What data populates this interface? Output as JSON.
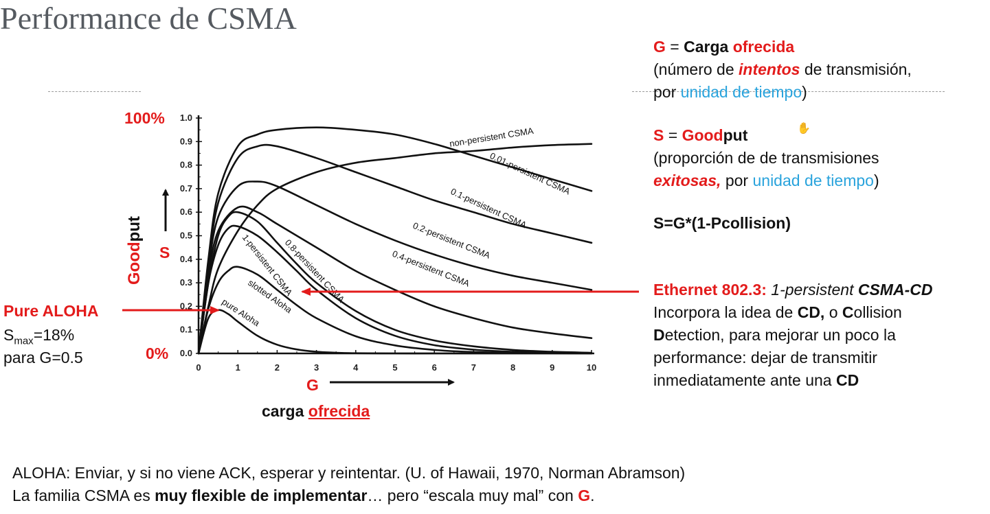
{
  "slide": {
    "title": "Performance de CSMA"
  },
  "right_text": {
    "g_def": {
      "symbol": "G",
      "eq": " = ",
      "word1": "Carga ",
      "word2": "ofrecida",
      "line2_a": "(número de ",
      "line2_b": "intentos",
      "line2_c": " de transmisión,",
      "line3_a": "por ",
      "line3_b": "unidad de tiempo",
      "line3_c": ")"
    },
    "s_def": {
      "symbol": "S",
      "eq": " = ",
      "word1": "Good",
      "word2": "put",
      "line2": "(proporción de de transmisiones",
      "line3_a": "exitosas,",
      "line3_b": " por ",
      "line3_c": "unidad de tiempo",
      "line3_d": ")"
    },
    "formula": "S=G*(1-Pcollision)",
    "ethernet": {
      "head_a": "Ethernet 802.3:",
      "head_b": " 1-persistent ",
      "head_c": "CSMA-CD",
      "l2_a": "Incorpora la idea de ",
      "l2_b": "CD,",
      "l2_c": " o ",
      "l2_d": "C",
      "l2_e": "ollision",
      "l3_a": "D",
      "l3_b": "etection, para mejorar un poco la",
      "l4": "performance: dejar de transmitir",
      "l5_a": "inmediatamente ante una ",
      "l5_b": "CD"
    }
  },
  "left_text": {
    "pure_aloha": "Pure ALOHA",
    "smax_s": "S",
    "smax_sub": "max",
    "smax_val": "=18%",
    "para": "para G=0.5",
    "pct100": "100%",
    "pct0": "0%",
    "goodput_a": "Good",
    "goodput_b": "put",
    "s_symbol": "S",
    "g_symbol": "G",
    "carga": "carga ",
    "ofrecida": "ofrecida"
  },
  "footer": {
    "line1": "ALOHA: Enviar, y si no viene ACK, esperar y reintentar. (U. of Hawaii, 1970, Norman Abramson)",
    "line2_a": "La familia CSMA es ",
    "line2_b": "muy flexible de implementar",
    "line2_c": "… pero “escala muy mal” con ",
    "line2_d": "G",
    "line2_e": "."
  },
  "colors": {
    "accent_red": "#e31b1b",
    "accent_blue": "#29a3dc",
    "title_gray": "#555a60"
  },
  "chart_data": {
    "type": "line",
    "xlim": [
      0,
      10
    ],
    "ylim": [
      0,
      1.0
    ],
    "x_ticks": [
      "0",
      "1",
      "2",
      "3",
      "4",
      "5",
      "6",
      "7",
      "8",
      "9",
      "10"
    ],
    "y_ticks": [
      "0.0",
      "0.1",
      "0.2",
      "0.3",
      "0.4",
      "0.5",
      "0.6",
      "0.7",
      "0.8",
      "0.9",
      "1.0"
    ],
    "series": [
      {
        "name": "pure Aloha",
        "x": [
          0,
          0.25,
          0.5,
          0.75,
          1,
          1.5,
          2,
          2.5,
          3,
          3.5,
          4,
          5,
          6,
          7,
          8,
          9,
          10
        ],
        "y": [
          0,
          0.15,
          0.184,
          0.168,
          0.135,
          0.075,
          0.037,
          0.017,
          0.007,
          0.003,
          0.001,
          0,
          0,
          0,
          0,
          0,
          0
        ]
      },
      {
        "name": "slotted Aloha",
        "x": [
          0,
          0.25,
          0.5,
          0.75,
          1,
          1.5,
          2,
          2.5,
          3,
          4,
          5,
          6,
          7,
          8,
          9,
          10
        ],
        "y": [
          0,
          0.19,
          0.3,
          0.35,
          0.368,
          0.335,
          0.27,
          0.205,
          0.15,
          0.073,
          0.034,
          0.015,
          0.006,
          0.003,
          0.001,
          0
        ]
      },
      {
        "name": "1-persistent CSMA",
        "x": [
          0,
          0.25,
          0.5,
          0.75,
          1,
          1.5,
          2,
          2.5,
          3,
          4,
          5,
          6,
          7,
          8,
          9,
          10
        ],
        "y": [
          0,
          0.3,
          0.46,
          0.53,
          0.54,
          0.5,
          0.43,
          0.35,
          0.27,
          0.15,
          0.075,
          0.035,
          0.016,
          0.007,
          0.003,
          0.001
        ]
      },
      {
        "name": "0.8-persistent CSMA",
        "x": [
          0,
          0.25,
          0.5,
          0.75,
          1,
          1.5,
          2,
          2.5,
          3,
          4,
          5,
          6,
          7,
          8,
          9,
          10
        ],
        "y": [
          0,
          0.3,
          0.5,
          0.58,
          0.6,
          0.56,
          0.47,
          0.38,
          0.3,
          0.18,
          0.1,
          0.055,
          0.03,
          0.015,
          0.007,
          0.003
        ]
      },
      {
        "name": "0.4-persistent CSMA",
        "x": [
          0,
          0.25,
          0.5,
          1,
          1.5,
          2,
          3,
          4,
          5,
          6,
          7,
          8,
          9,
          10
        ],
        "y": [
          0,
          0.33,
          0.52,
          0.62,
          0.6,
          0.55,
          0.45,
          0.35,
          0.27,
          0.2,
          0.15,
          0.11,
          0.085,
          0.065
        ]
      },
      {
        "name": "0.2-persistent CSMA",
        "x": [
          0,
          0.25,
          0.5,
          1,
          1.5,
          2,
          3,
          4,
          5,
          6,
          7,
          8,
          9,
          10
        ],
        "y": [
          0,
          0.36,
          0.58,
          0.71,
          0.73,
          0.71,
          0.63,
          0.55,
          0.48,
          0.42,
          0.37,
          0.33,
          0.3,
          0.27
        ]
      },
      {
        "name": "0.1-persistent CSMA",
        "x": [
          0,
          0.25,
          0.5,
          1,
          1.5,
          2,
          3,
          4,
          5,
          6,
          7,
          8,
          9,
          10
        ],
        "y": [
          0,
          0.38,
          0.64,
          0.83,
          0.88,
          0.88,
          0.83,
          0.77,
          0.71,
          0.65,
          0.6,
          0.55,
          0.51,
          0.47
        ]
      },
      {
        "name": "0.01-persistent CSMA",
        "x": [
          0,
          0.25,
          0.5,
          1,
          1.5,
          2,
          3,
          4,
          5,
          6,
          7,
          8,
          9,
          10
        ],
        "y": [
          0,
          0.4,
          0.68,
          0.88,
          0.93,
          0.95,
          0.96,
          0.95,
          0.93,
          0.89,
          0.84,
          0.79,
          0.74,
          0.69
        ]
      },
      {
        "name": "non-persistent CSMA",
        "x": [
          0,
          0.25,
          0.5,
          1,
          1.5,
          2,
          3,
          4,
          5,
          6,
          7,
          8,
          9,
          10
        ],
        "y": [
          0,
          0.2,
          0.36,
          0.52,
          0.63,
          0.7,
          0.77,
          0.81,
          0.83,
          0.85,
          0.86,
          0.875,
          0.885,
          0.89
        ]
      }
    ]
  }
}
